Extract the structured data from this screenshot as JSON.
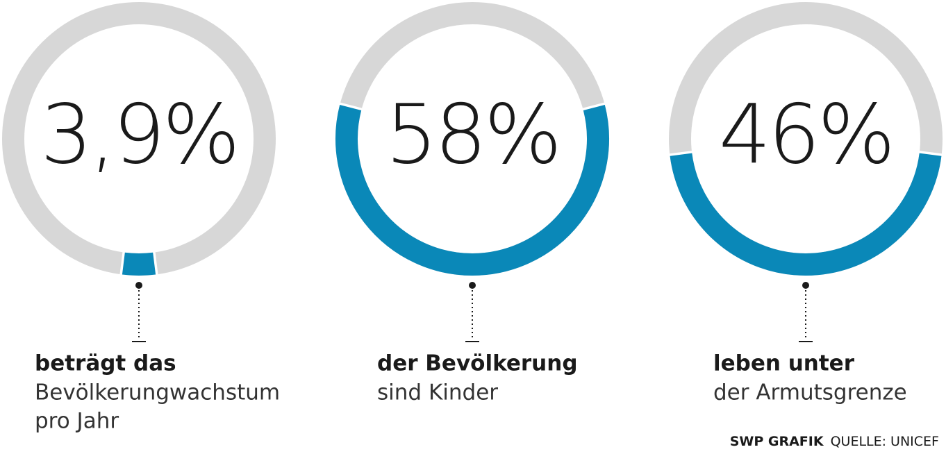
{
  "chart_data": [
    {
      "type": "donut",
      "values": [
        3.9
      ],
      "value_labels": [
        "3,9%"
      ],
      "color": "#0a88b8",
      "track_color": "#d7d7d7",
      "caption_bold": "beträgt das",
      "caption": [
        "Bevölkerungwachstum",
        "pro Jahr"
      ]
    },
    {
      "type": "donut",
      "values": [
        58
      ],
      "value_labels": [
        "58%"
      ],
      "color": "#0a88b8",
      "track_color": "#d7d7d7",
      "caption_bold": "der Bevölkerung",
      "caption": [
        "sind Kinder"
      ]
    },
    {
      "type": "donut",
      "values": [
        46
      ],
      "value_labels": [
        "46%"
      ],
      "color": "#0a88b8",
      "track_color": "#d7d7d7",
      "caption_bold": "leben unter",
      "caption": [
        "der Armutsgrenze"
      ]
    }
  ],
  "credit": {
    "brand": "SWP GRAFIK",
    "source": "QUELLE: UNICEF"
  }
}
